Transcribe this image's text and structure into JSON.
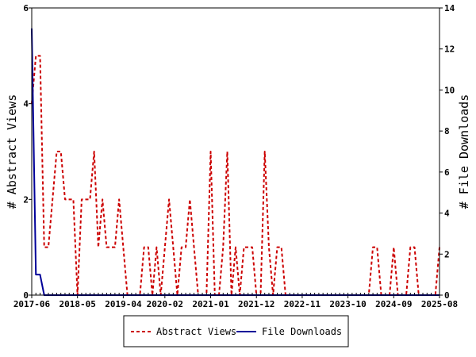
{
  "chart_data": {
    "type": "line",
    "ylabel_left": "# Abstract Views",
    "ylabel_right": "# File Downloads",
    "ylim_left": [
      0,
      6
    ],
    "ylim_right": [
      0,
      14
    ],
    "yticks_left": [
      0,
      2,
      4,
      6
    ],
    "yticks_right": [
      0,
      2,
      4,
      6,
      8,
      10,
      12,
      14
    ],
    "xlim": [
      "2017-06",
      "2025-08"
    ],
    "xtick_labels": [
      "2017-06",
      "2018-05",
      "2019-04",
      "2020-02",
      "2021-01",
      "2021-12",
      "2022-11",
      "2023-10",
      "2024-09",
      "2025-08"
    ],
    "grid": false,
    "legend_placement": "bottom-center",
    "series": [
      {
        "name": "Abstract Views",
        "axis": "left",
        "color": "#cc0000",
        "style": "dashed",
        "points": [
          [
            "2017-06",
            4
          ],
          [
            "2017-07",
            5
          ],
          [
            "2017-08",
            5
          ],
          [
            "2017-09",
            1
          ],
          [
            "2017-10",
            1
          ],
          [
            "2017-11",
            2
          ],
          [
            "2017-12",
            3
          ],
          [
            "2018-01",
            3
          ],
          [
            "2018-02",
            2
          ],
          [
            "2018-03",
            2
          ],
          [
            "2018-04",
            2
          ],
          [
            "2018-05",
            0
          ],
          [
            "2018-06",
            2
          ],
          [
            "2018-07",
            2
          ],
          [
            "2018-08",
            2
          ],
          [
            "2018-09",
            3
          ],
          [
            "2018-10",
            1
          ],
          [
            "2018-11",
            2
          ],
          [
            "2018-12",
            1
          ],
          [
            "2019-01",
            1
          ],
          [
            "2019-02",
            1
          ],
          [
            "2019-03",
            2
          ],
          [
            "2019-04",
            1
          ],
          [
            "2019-05",
            0
          ],
          [
            "2019-06",
            0
          ],
          [
            "2019-07",
            0
          ],
          [
            "2019-08",
            0
          ],
          [
            "2019-09",
            1
          ],
          [
            "2019-10",
            1
          ],
          [
            "2019-11",
            0
          ],
          [
            "2019-12",
            1
          ],
          [
            "2020-01",
            0
          ],
          [
            "2020-02",
            1
          ],
          [
            "2020-03",
            2
          ],
          [
            "2020-04",
            1
          ],
          [
            "2020-05",
            0
          ],
          [
            "2020-06",
            1
          ],
          [
            "2020-07",
            1
          ],
          [
            "2020-08",
            2
          ],
          [
            "2020-09",
            1
          ],
          [
            "2020-10",
            0
          ],
          [
            "2020-11",
            0
          ],
          [
            "2020-12",
            0
          ],
          [
            "2021-01",
            3
          ],
          [
            "2021-02",
            0
          ],
          [
            "2021-03",
            0
          ],
          [
            "2021-04",
            1
          ],
          [
            "2021-05",
            3
          ],
          [
            "2021-06",
            0
          ],
          [
            "2021-07",
            1
          ],
          [
            "2021-08",
            0
          ],
          [
            "2021-09",
            1
          ],
          [
            "2021-10",
            1
          ],
          [
            "2021-11",
            1
          ],
          [
            "2021-12",
            0
          ],
          [
            "2022-01",
            0
          ],
          [
            "2022-02",
            3
          ],
          [
            "2022-03",
            1
          ],
          [
            "2022-04",
            0
          ],
          [
            "2022-05",
            1
          ],
          [
            "2022-06",
            1
          ],
          [
            "2022-07",
            0
          ],
          [
            "2022-08",
            0
          ],
          [
            "2022-09",
            0
          ],
          [
            "2022-10",
            0
          ],
          [
            "2022-11",
            0
          ],
          [
            "2022-12",
            0
          ],
          [
            "2023-01",
            0
          ],
          [
            "2023-02",
            0
          ],
          [
            "2023-03",
            0
          ],
          [
            "2023-04",
            0
          ],
          [
            "2023-05",
            0
          ],
          [
            "2023-06",
            0
          ],
          [
            "2023-07",
            0
          ],
          [
            "2023-08",
            0
          ],
          [
            "2023-09",
            0
          ],
          [
            "2023-10",
            0
          ],
          [
            "2023-11",
            0
          ],
          [
            "2023-12",
            0
          ],
          [
            "2024-01",
            0
          ],
          [
            "2024-02",
            0
          ],
          [
            "2024-03",
            0
          ],
          [
            "2024-04",
            1
          ],
          [
            "2024-05",
            1
          ],
          [
            "2024-06",
            0
          ],
          [
            "2024-07",
            0
          ],
          [
            "2024-08",
            0
          ],
          [
            "2024-09",
            1
          ],
          [
            "2024-10",
            0
          ],
          [
            "2024-11",
            0
          ],
          [
            "2024-12",
            0
          ],
          [
            "2025-01",
            1
          ],
          [
            "2025-02",
            1
          ],
          [
            "2025-03",
            0
          ],
          [
            "2025-04",
            0
          ],
          [
            "2025-05",
            0
          ],
          [
            "2025-06",
            0
          ],
          [
            "2025-07",
            0
          ],
          [
            "2025-08",
            1
          ]
        ]
      },
      {
        "name": "File Downloads",
        "axis": "right",
        "color": "#000099",
        "style": "solid",
        "points": [
          [
            "2017-06",
            13
          ],
          [
            "2017-07",
            1
          ],
          [
            "2017-08",
            1
          ],
          [
            "2017-09",
            0
          ],
          [
            "2017-10",
            0
          ],
          [
            "2017-11",
            0
          ],
          [
            "2017-12",
            0
          ],
          [
            "2018-01",
            0
          ],
          [
            "2018-02",
            0
          ],
          [
            "2018-03",
            0
          ],
          [
            "2018-04",
            0
          ],
          [
            "2018-05",
            0
          ],
          [
            "2018-06",
            0
          ],
          [
            "2018-07",
            0
          ],
          [
            "2018-08",
            0
          ],
          [
            "2018-09",
            0
          ],
          [
            "2018-10",
            0
          ],
          [
            "2018-11",
            0
          ],
          [
            "2018-12",
            0
          ],
          [
            "2019-01",
            0
          ],
          [
            "2019-02",
            0
          ],
          [
            "2019-03",
            0
          ],
          [
            "2019-04",
            0
          ],
          [
            "2019-05",
            0
          ],
          [
            "2019-06",
            0
          ],
          [
            "2019-07",
            0
          ],
          [
            "2019-08",
            0
          ],
          [
            "2019-09",
            0
          ],
          [
            "2019-10",
            0
          ],
          [
            "2019-11",
            0
          ],
          [
            "2019-12",
            0
          ],
          [
            "2020-01",
            0
          ],
          [
            "2020-02",
            0
          ],
          [
            "2020-03",
            0
          ],
          [
            "2020-04",
            0
          ],
          [
            "2020-05",
            0
          ],
          [
            "2020-06",
            0
          ],
          [
            "2020-07",
            0
          ],
          [
            "2020-08",
            0
          ],
          [
            "2020-09",
            0
          ],
          [
            "2020-10",
            0
          ],
          [
            "2020-11",
            0
          ],
          [
            "2020-12",
            0
          ],
          [
            "2021-01",
            0
          ],
          [
            "2021-02",
            0
          ],
          [
            "2021-03",
            0
          ],
          [
            "2021-04",
            0
          ],
          [
            "2021-05",
            0
          ],
          [
            "2021-06",
            0
          ],
          [
            "2021-07",
            0
          ],
          [
            "2021-08",
            0
          ],
          [
            "2021-09",
            0
          ],
          [
            "2021-10",
            0
          ],
          [
            "2021-11",
            0
          ],
          [
            "2021-12",
            0
          ],
          [
            "2022-01",
            0
          ],
          [
            "2022-02",
            0
          ],
          [
            "2022-03",
            0
          ],
          [
            "2022-04",
            0
          ],
          [
            "2022-05",
            0
          ],
          [
            "2022-06",
            0
          ],
          [
            "2022-07",
            0
          ],
          [
            "2022-08",
            0
          ],
          [
            "2022-09",
            0
          ],
          [
            "2022-10",
            0
          ],
          [
            "2022-11",
            0
          ],
          [
            "2022-12",
            0
          ],
          [
            "2023-01",
            0
          ],
          [
            "2023-02",
            0
          ],
          [
            "2023-03",
            0
          ],
          [
            "2023-04",
            0
          ],
          [
            "2023-05",
            0
          ],
          [
            "2023-06",
            0
          ],
          [
            "2023-07",
            0
          ],
          [
            "2023-08",
            0
          ],
          [
            "2023-09",
            0
          ],
          [
            "2023-10",
            0
          ],
          [
            "2023-11",
            0
          ],
          [
            "2023-12",
            0
          ],
          [
            "2024-01",
            0
          ],
          [
            "2024-02",
            0
          ],
          [
            "2024-03",
            0
          ],
          [
            "2024-04",
            0
          ],
          [
            "2024-05",
            0
          ],
          [
            "2024-06",
            0
          ],
          [
            "2024-07",
            0
          ],
          [
            "2024-08",
            0
          ],
          [
            "2024-09",
            0
          ],
          [
            "2024-10",
            0
          ],
          [
            "2024-11",
            0
          ],
          [
            "2024-12",
            0
          ],
          [
            "2025-01",
            0
          ],
          [
            "2025-02",
            0
          ],
          [
            "2025-03",
            0
          ],
          [
            "2025-04",
            0
          ],
          [
            "2025-05",
            0
          ],
          [
            "2025-06",
            0
          ],
          [
            "2025-07",
            0
          ],
          [
            "2025-08",
            0
          ]
        ]
      }
    ]
  }
}
